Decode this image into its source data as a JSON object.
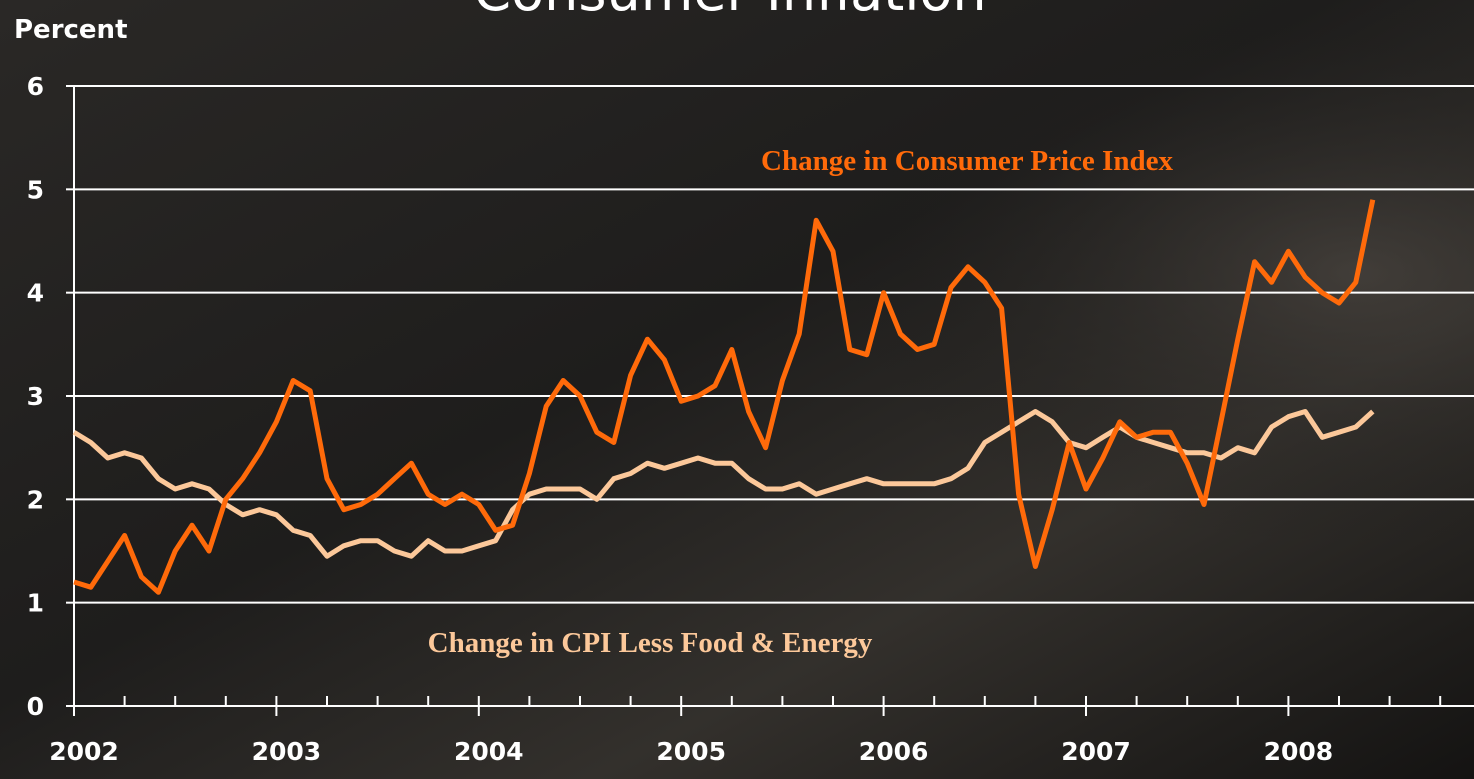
{
  "chart_data": {
    "type": "line",
    "title": "Consumer Inflation",
    "y_label": "Percent",
    "x": [
      2002,
      2002.083,
      2002.167,
      2002.25,
      2002.333,
      2002.417,
      2002.5,
      2002.583,
      2002.667,
      2002.75,
      2002.833,
      2002.917,
      2003,
      2003.083,
      2003.167,
      2003.25,
      2003.333,
      2003.417,
      2003.5,
      2003.583,
      2003.667,
      2003.75,
      2003.833,
      2003.917,
      2004,
      2004.083,
      2004.167,
      2004.25,
      2004.333,
      2004.417,
      2004.5,
      2004.583,
      2004.667,
      2004.75,
      2004.833,
      2004.917,
      2005,
      2005.083,
      2005.167,
      2005.25,
      2005.333,
      2005.417,
      2005.5,
      2005.583,
      2005.667,
      2005.75,
      2005.833,
      2005.917,
      2006,
      2006.083,
      2006.167,
      2006.25,
      2006.333,
      2006.417,
      2006.5,
      2006.583,
      2006.667,
      2006.75,
      2006.833,
      2006.917,
      2007,
      2007.083,
      2007.167,
      2007.25,
      2007.333,
      2007.417,
      2007.5,
      2007.583,
      2007.667,
      2007.75,
      2007.833,
      2007.917,
      2008,
      2008.083,
      2008.167,
      2008.25,
      2008.333,
      2008.417
    ],
    "series": [
      {
        "name": "Change in Consumer Price Index",
        "color": "#ff6a0a",
        "values": [
          1.2,
          1.15,
          1.4,
          1.65,
          1.25,
          1.1,
          1.5,
          1.75,
          1.5,
          2.0,
          2.2,
          2.45,
          2.75,
          3.15,
          3.05,
          2.2,
          1.9,
          1.95,
          2.05,
          2.2,
          2.35,
          2.05,
          1.95,
          2.05,
          1.95,
          1.7,
          1.75,
          2.25,
          2.9,
          3.15,
          3.0,
          2.65,
          2.55,
          3.2,
          3.55,
          3.35,
          2.95,
          3.0,
          3.1,
          3.45,
          2.85,
          2.5,
          3.15,
          3.6,
          4.7,
          4.4,
          3.45,
          3.4,
          4.0,
          3.6,
          3.45,
          3.5,
          4.05,
          4.25,
          4.1,
          3.85,
          2.05,
          1.35,
          1.9,
          2.55,
          2.1,
          2.4,
          2.75,
          2.6,
          2.65,
          2.65,
          2.35,
          1.95,
          2.75,
          3.55,
          4.3,
          4.1,
          4.4,
          4.15,
          4.0,
          3.9,
          4.1,
          4.9
        ]
      },
      {
        "name": "Change in CPI Less Food & Energy",
        "color": "#fcc89a",
        "values": [
          2.65,
          2.55,
          2.4,
          2.45,
          2.4,
          2.2,
          2.1,
          2.15,
          2.1,
          1.95,
          1.85,
          1.9,
          1.85,
          1.7,
          1.65,
          1.45,
          1.55,
          1.6,
          1.6,
          1.5,
          1.45,
          1.6,
          1.5,
          1.5,
          1.55,
          1.6,
          1.9,
          2.05,
          2.1,
          2.1,
          2.1,
          2.0,
          2.2,
          2.25,
          2.35,
          2.3,
          2.35,
          2.4,
          2.35,
          2.35,
          2.2,
          2.1,
          2.1,
          2.15,
          2.05,
          2.1,
          2.15,
          2.2,
          2.15,
          2.15,
          2.15,
          2.15,
          2.2,
          2.3,
          2.55,
          2.65,
          2.75,
          2.85,
          2.75,
          2.55,
          2.5,
          2.6,
          2.7,
          2.6,
          2.55,
          2.5,
          2.45,
          2.45,
          2.4,
          2.5,
          2.45,
          2.7,
          2.8,
          2.85,
          2.6,
          2.65,
          2.7,
          2.85
        ]
      }
    ],
    "xlim": [
      2002,
      2008.917
    ],
    "xticks": [
      2002,
      2003,
      2004,
      2005,
      2006,
      2007,
      2008
    ],
    "x_minor_ticks": [
      2002.25,
      2002.5,
      2002.75,
      2003.25,
      2003.5,
      2003.75,
      2004.25,
      2004.5,
      2004.75,
      2005.25,
      2005.5,
      2005.75,
      2006.25,
      2006.5,
      2006.75,
      2007.25,
      2007.5,
      2007.75,
      2008.25,
      2008.5,
      2008.75
    ],
    "ylim": [
      0,
      6
    ],
    "yticks": [
      0,
      1,
      2,
      3,
      4,
      5,
      6
    ],
    "grid": true
  }
}
